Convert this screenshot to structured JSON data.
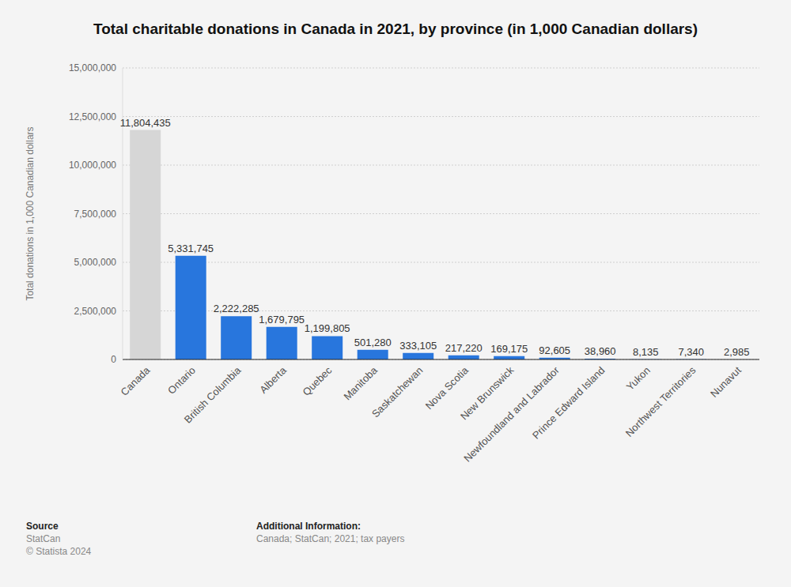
{
  "chart_data": {
    "type": "bar",
    "title": "Total charitable donations in Canada in 2021, by province (in 1,000 Canadian dollars)",
    "y_label": "Total donations in 1,000 Canadian dollars",
    "categories": [
      "Canada",
      "Ontario",
      "British Columbia",
      "Alberta",
      "Quebec",
      "Manitoba",
      "Saskatchewan",
      "Nova Scotia",
      "New Brunswick",
      "Newfoundland and Labrador",
      "Prince Edward Island",
      "Yukon",
      "Northwest Territories",
      "Nunavut"
    ],
    "values": [
      11804435,
      5331745,
      2222285,
      1679795,
      1199805,
      501280,
      333105,
      217220,
      169175,
      92605,
      38960,
      8135,
      7340,
      2985
    ],
    "value_labels": [
      "11,804,435",
      "5,331,745",
      "2,222,285",
      "1,679,795",
      "1,199,805",
      "501,280",
      "333,105",
      "217,220",
      "169,175",
      "92,605",
      "38,960",
      "8,135",
      "7,340",
      "2,985"
    ],
    "colors": [
      "#d6d6d6",
      "#2876dd",
      "#2876dd",
      "#2876dd",
      "#2876dd",
      "#2876dd",
      "#2876dd",
      "#2876dd",
      "#2876dd",
      "#2876dd",
      "#2876dd",
      "#2876dd",
      "#2876dd",
      "#2876dd"
    ],
    "ylim": [
      0,
      15000000
    ],
    "yticks": [
      0,
      {
        "value": 2500000,
        "label": "2,500,000"
      },
      {
        "value": 5000000,
        "label": "5,000,000"
      },
      {
        "value": 7500000,
        "label": "7,500,000"
      },
      {
        "value": 10000000,
        "label": "10,000,000"
      },
      {
        "value": 12500000,
        "label": "12,500,000"
      },
      {
        "value": 15000000,
        "label": "15,000,000"
      }
    ],
    "grid": true,
    "data_labels": true,
    "footer": {
      "source_heading": "Source",
      "source": "StatCan",
      "copyright": "© Statista 2024",
      "info_heading": "Additional Information:",
      "info": "Canada; StatCan; 2021; tax payers"
    }
  }
}
